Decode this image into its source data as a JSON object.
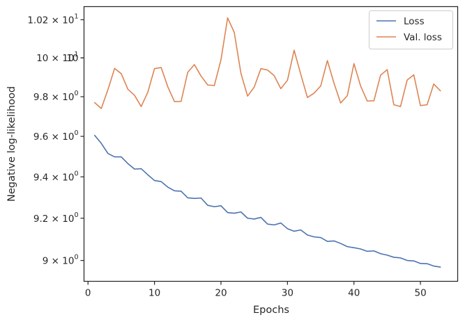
{
  "chart_data": {
    "type": "line",
    "xlabel": "Epochs",
    "ylabel": "Negative log-likelihood",
    "xlim": [
      -0.6,
      55.6
    ],
    "ylim": [
      8.903,
      10.27
    ],
    "y_scale": "log",
    "grid": false,
    "legend_placement": "top-right",
    "x_ticks": [
      0,
      10,
      20,
      30,
      40,
      50
    ],
    "x_tick_labels": [
      "0",
      "10",
      "20",
      "30",
      "40",
      "50"
    ],
    "y_ticks": [
      {
        "value": 9.0,
        "mantissa": "9",
        "exponent": "0"
      },
      {
        "value": 9.2,
        "mantissa": "9.2",
        "exponent": "0"
      },
      {
        "value": 9.4,
        "mantissa": "9.4",
        "exponent": "0"
      },
      {
        "value": 9.6,
        "mantissa": "9.6",
        "exponent": "0"
      },
      {
        "value": 9.8,
        "mantissa": "9.8",
        "exponent": "0"
      },
      {
        "value": 10.0,
        "mantissa": "10",
        "exponent": "1"
      },
      {
        "value": 10.2,
        "mantissa": "1.02",
        "exponent": "1"
      }
    ],
    "y_tick_plain": {
      "value": 10.0,
      "label": "10"
    },
    "x": [
      1,
      2,
      3,
      4,
      5,
      6,
      7,
      8,
      9,
      10,
      11,
      12,
      13,
      14,
      15,
      16,
      17,
      18,
      19,
      20,
      21,
      22,
      23,
      24,
      25,
      26,
      27,
      28,
      29,
      30,
      31,
      32,
      33,
      34,
      35,
      36,
      37,
      38,
      39,
      40,
      41,
      42,
      43,
      44,
      45,
      46,
      47,
      48,
      49,
      50,
      51,
      52,
      53
    ],
    "series": [
      {
        "name": "Loss",
        "color": "#4c72b0",
        "values": [
          9.605,
          9.565,
          9.515,
          9.498,
          9.498,
          9.465,
          9.438,
          9.44,
          9.41,
          9.382,
          9.377,
          9.35,
          9.332,
          9.33,
          9.298,
          9.295,
          9.297,
          9.262,
          9.255,
          9.26,
          9.227,
          9.224,
          9.23,
          9.2,
          9.196,
          9.204,
          9.172,
          9.168,
          9.177,
          9.15,
          9.138,
          9.144,
          9.12,
          9.111,
          9.108,
          9.09,
          9.092,
          9.08,
          9.065,
          9.06,
          9.054,
          9.043,
          9.045,
          9.032,
          9.025,
          9.015,
          9.012,
          9.0,
          8.998,
          8.986,
          8.985,
          8.974,
          8.969
        ]
      },
      {
        "name": "Val. loss",
        "color": "#dd8452",
        "values": [
          9.77,
          9.74,
          9.836,
          9.945,
          9.918,
          9.838,
          9.807,
          9.75,
          9.823,
          9.944,
          9.95,
          9.851,
          9.775,
          9.776,
          9.925,
          9.965,
          9.906,
          9.86,
          9.857,
          9.99,
          10.21,
          10.133,
          9.92,
          9.803,
          9.849,
          9.944,
          9.937,
          9.908,
          9.841,
          9.884,
          10.04,
          9.915,
          9.796,
          9.818,
          9.855,
          9.986,
          9.869,
          9.768,
          9.805,
          9.97,
          9.855,
          9.778,
          9.779,
          9.91,
          9.939,
          9.759,
          9.75,
          9.885,
          9.912,
          9.755,
          9.759,
          9.865,
          9.83
        ]
      }
    ]
  }
}
